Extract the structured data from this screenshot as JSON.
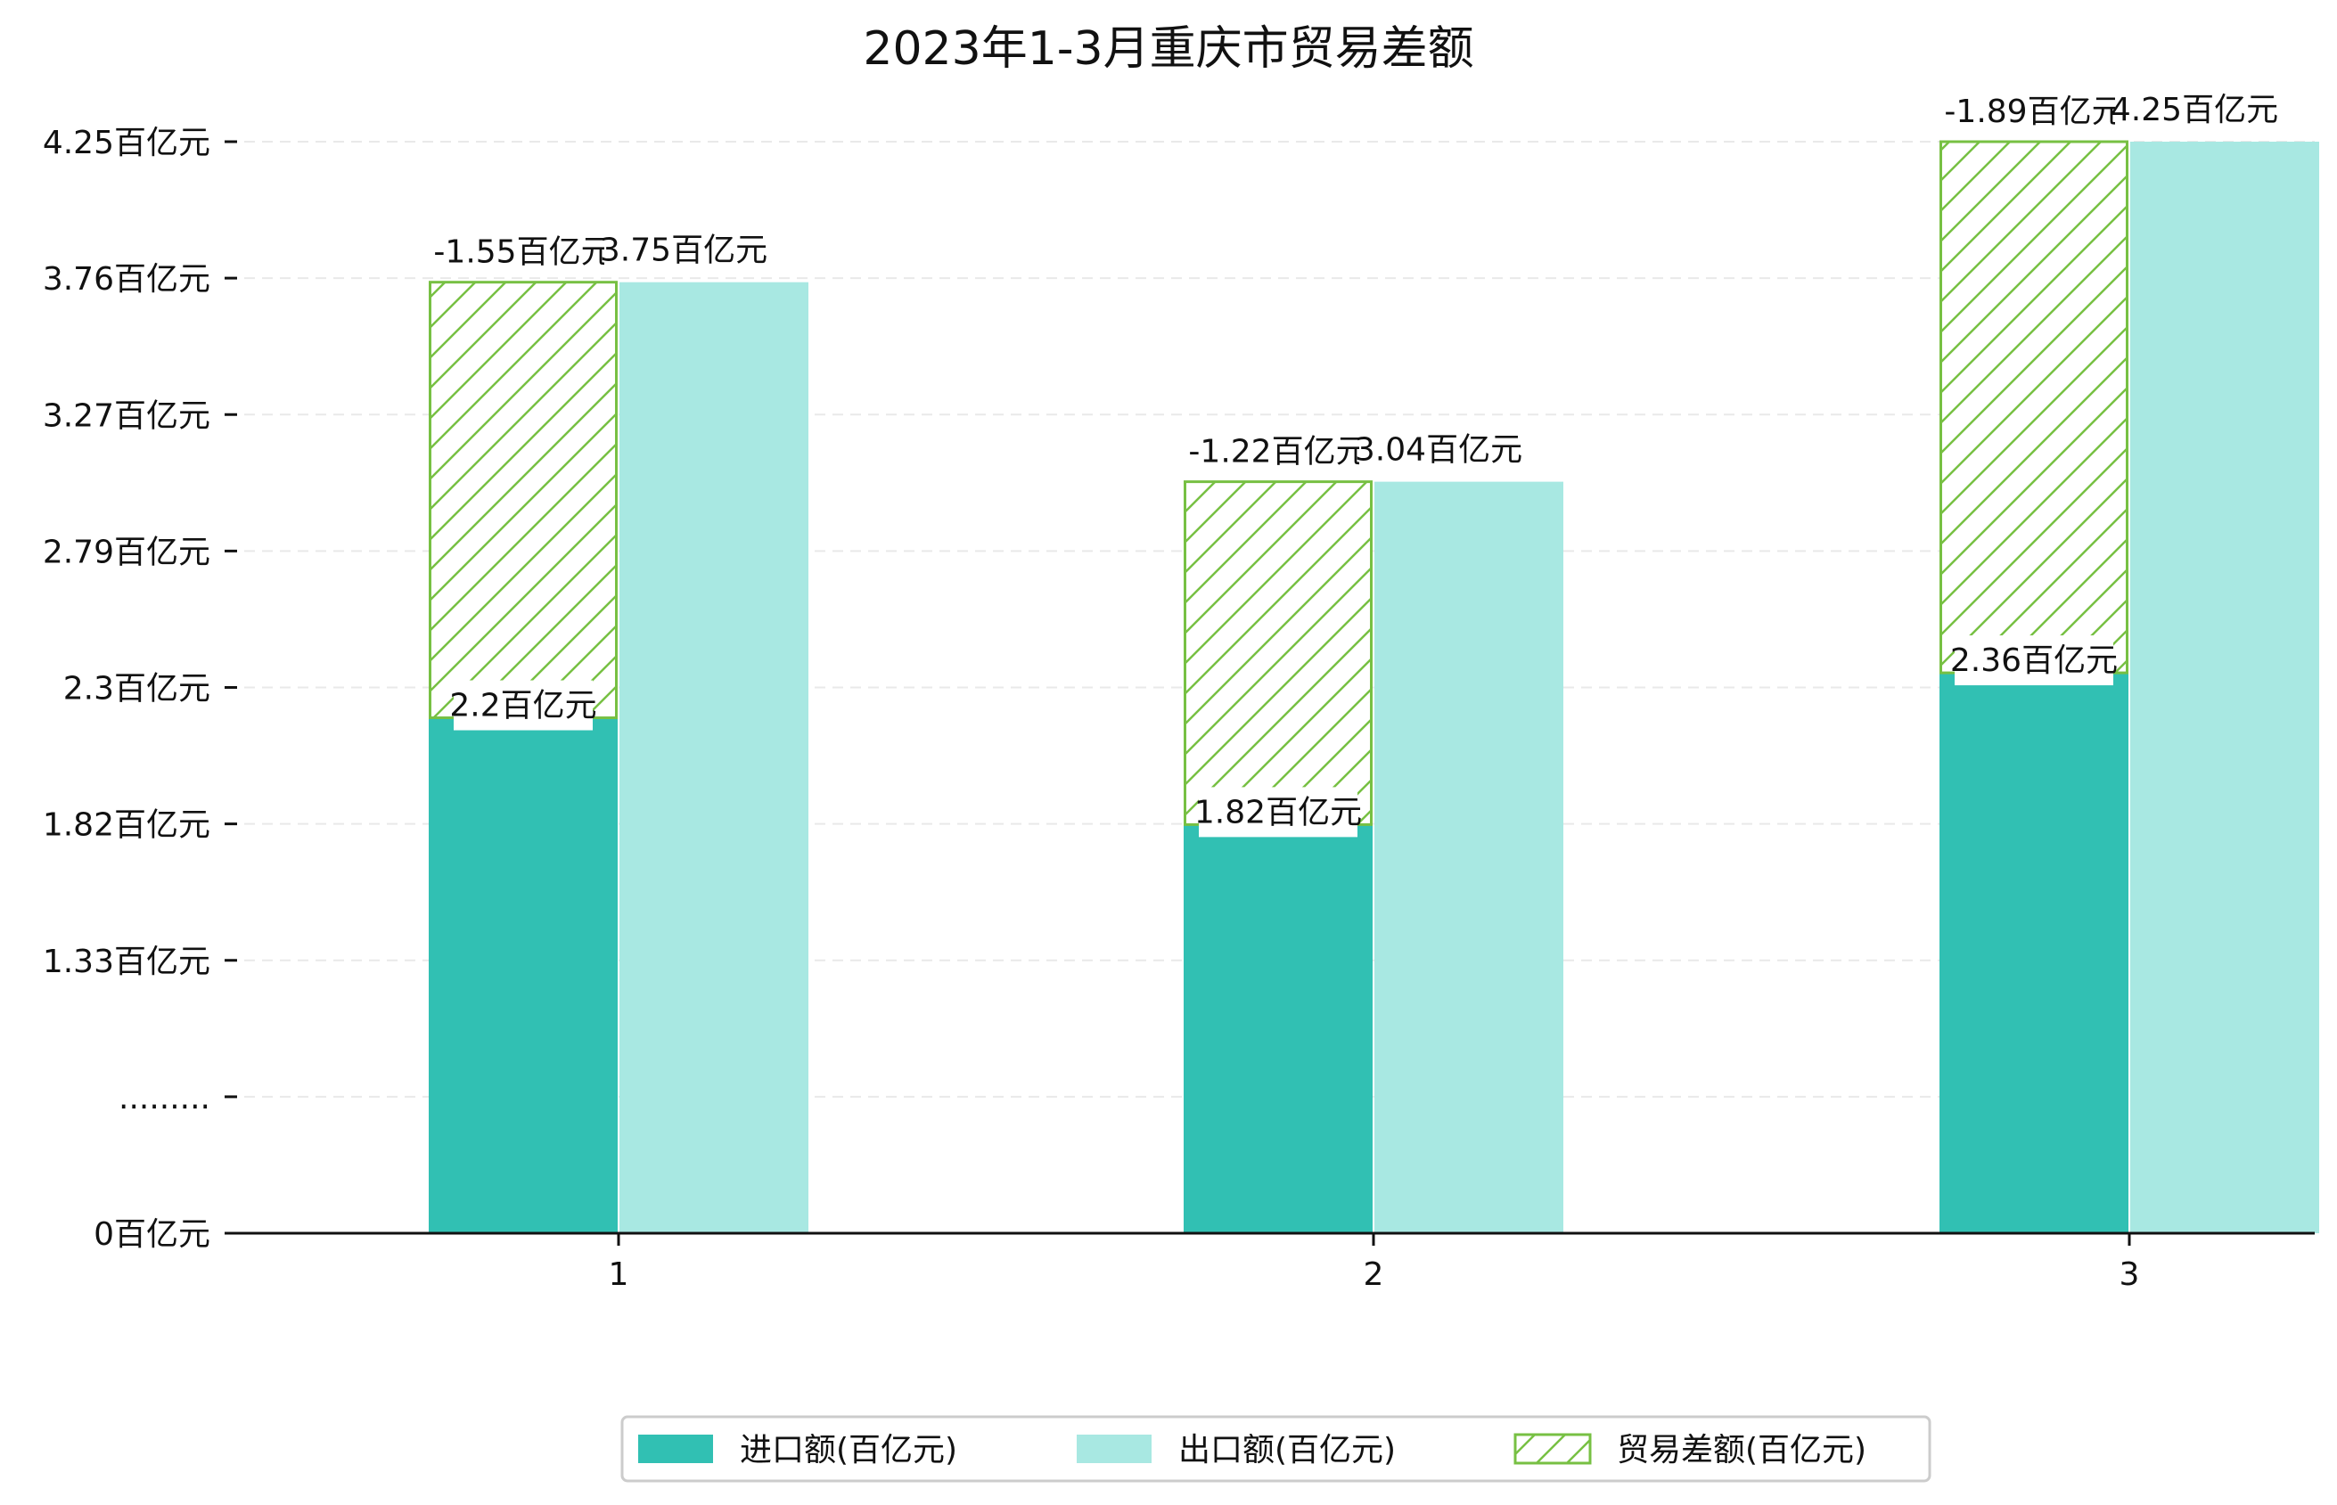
{
  "chart_data": {
    "type": "bar",
    "title": "2023年1-3月重庆市贸易差额",
    "xlabel": "",
    "ylabel": "",
    "categories": [
      "1",
      "2",
      "3"
    ],
    "y_tick_labels": [
      "0百亿元",
      ".........",
      "1.33百亿元",
      "1.82百亿元",
      "2.3百亿元",
      "2.79百亿元",
      "3.27百亿元",
      "3.76百亿元",
      "4.25百亿元"
    ],
    "axis_break": true,
    "series": [
      {
        "name": "进口额(百亿元)",
        "values": [
          2.2,
          1.82,
          2.36
        ],
        "labels": [
          "2.2百亿元",
          "1.82百亿元",
          "2.36百亿元"
        ],
        "color": "#31c0b3"
      },
      {
        "name": "出口额(百亿元)",
        "values": [
          3.75,
          3.04,
          4.25
        ],
        "labels": [
          "3.75百亿元",
          "3.04百亿元",
          "4.25百亿元"
        ],
        "color": "#a8e8e2"
      },
      {
        "name": "贸易差额(百亿元)",
        "values": [
          -1.55,
          -1.22,
          -1.89
        ],
        "labels": [
          "-1.55百亿元",
          "-1.22百亿元",
          "-1.89百亿元"
        ],
        "color": "#77c043",
        "pattern": "hatch"
      }
    ],
    "grid": true,
    "legend_position": "bottom"
  }
}
